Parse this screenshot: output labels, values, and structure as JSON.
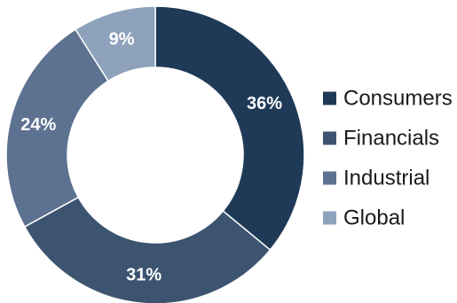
{
  "chart_data": {
    "type": "pie",
    "donut": true,
    "title": "",
    "legend_position": "right",
    "slices": [
      {
        "label": "Consumers",
        "value": 36,
        "display": "36%",
        "color": "#1f3a57"
      },
      {
        "label": "Financials",
        "value": 31,
        "display": "31%",
        "color": "#3d5470"
      },
      {
        "label": "Industrial",
        "value": 24,
        "display": "24%",
        "color": "#5d7190"
      },
      {
        "label": "Global",
        "value": 9,
        "display": "9%",
        "color": "#8ea2bc"
      }
    ]
  }
}
